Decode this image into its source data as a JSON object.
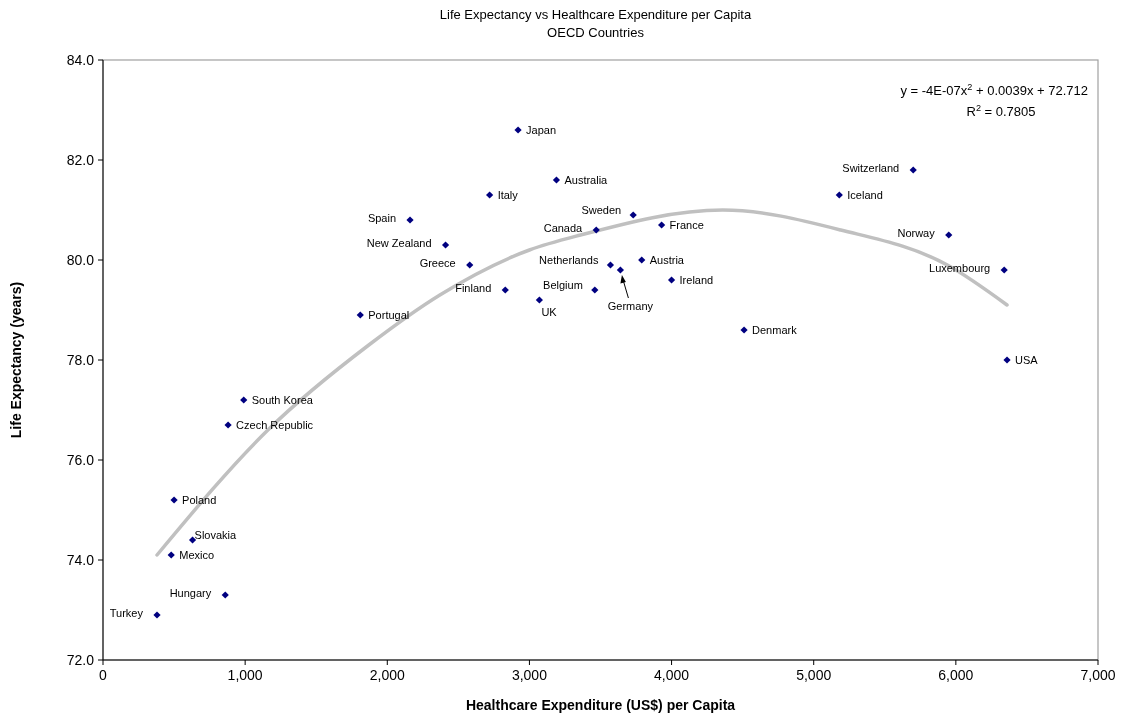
{
  "chart_data": {
    "type": "scatter",
    "title": "Life Expectancy vs Healthcare Expenditure per Capita",
    "subtitle": "OECD Countries",
    "xlabel": "Healthcare Expenditure (US$) per Capita",
    "ylabel": "Life Expectancy (years)",
    "xlim": [
      0,
      7000
    ],
    "xticks": [
      0,
      {
        "value": 1000,
        "label": "1,000"
      },
      {
        "value": 2000,
        "label": "2,000"
      },
      {
        "value": 3000,
        "label": "3,000"
      },
      {
        "value": 4000,
        "label": "4,000"
      },
      {
        "value": 5000,
        "label": "5,000"
      },
      {
        "value": 6000,
        "label": "6,000"
      },
      {
        "value": 7000,
        "label": "7,000"
      }
    ],
    "ylim": [
      72,
      84
    ],
    "yticks": [
      {
        "value": 72,
        "label": "72.0"
      },
      {
        "value": 74,
        "label": "74.0"
      },
      {
        "value": 76,
        "label": "76.0"
      },
      {
        "value": 78,
        "label": "78.0"
      },
      {
        "value": 80,
        "label": "80.0"
      },
      {
        "value": 82,
        "label": "82.0"
      },
      {
        "value": 84,
        "label": "84.0"
      }
    ],
    "grid": false,
    "series": [
      {
        "marker": "diamond",
        "color": "#000080",
        "x": [
          2920,
          3190,
          2720,
          2160,
          2410,
          2580,
          2830,
          3070,
          1810,
          990,
          880,
          500,
          630,
          480,
          860,
          380,
          3730,
          3470,
          3570,
          3640,
          3460,
          3790,
          3930,
          4000,
          4510,
          5700,
          5180,
          5950,
          6340,
          6360
        ],
        "values": [
          82.6,
          81.6,
          81.3,
          80.8,
          80.3,
          79.9,
          79.4,
          79.2,
          78.9,
          77.2,
          76.7,
          75.2,
          74.4,
          74.1,
          73.3,
          72.9,
          80.9,
          80.6,
          79.9,
          79.8,
          79.4,
          80.0,
          80.7,
          79.6,
          78.6,
          81.8,
          81.3,
          80.5,
          79.8,
          78.0
        ]
      },
      {
        "type": "line",
        "color": "#c0c0c0",
        "x": [
          380,
          1160,
          1870,
          2370,
          3000,
          3360,
          4360,
          5190,
          5940,
          6360
        ],
        "values": [
          74.1,
          76.6,
          78.3,
          79.3,
          80.2,
          80.5,
          81.0,
          80.6,
          79.9,
          79.1
        ]
      }
    ],
    "annotations": [
      "y = -4E-07x$^{2}$ + 0.0039x + 72.712",
      "R$^{2}$ = 0.7805",
      {
        "text": "Japan",
        "x": 2920,
        "y": 82.6
      },
      {
        "text": "Australia",
        "x": 3190,
        "y": 81.6
      },
      {
        "text": "Italy",
        "x": 2720,
        "y": 81.3
      },
      {
        "text": "Spain",
        "x": 2160,
        "y": 80.8
      },
      {
        "text": "New Zealand",
        "x": 2410,
        "y": 80.3
      },
      {
        "text": "Greece",
        "x": 2580,
        "y": 79.9
      },
      {
        "text": "Finland",
        "x": 2830,
        "y": 79.4
      },
      {
        "text": "UK",
        "x": 3070,
        "y": 79.2
      },
      {
        "text": "Portugal",
        "x": 1810,
        "y": 78.9
      },
      {
        "text": "South Korea",
        "x": 990,
        "y": 77.2
      },
      {
        "text": "Czech Republic",
        "x": 880,
        "y": 76.7
      },
      {
        "text": "Poland",
        "x": 500,
        "y": 75.2
      },
      {
        "text": "Slovakia",
        "x": 630,
        "y": 74.4
      },
      {
        "text": "Mexico",
        "x": 480,
        "y": 74.1
      },
      {
        "text": "Hungary",
        "x": 860,
        "y": 73.3
      },
      {
        "text": "Turkey",
        "x": 380,
        "y": 72.9
      },
      {
        "text": "Sweden",
        "x": 3730,
        "y": 80.9
      },
      {
        "text": "Canada",
        "x": 3470,
        "y": 80.6
      },
      {
        "text": "Netherlands",
        "x": 3570,
        "y": 79.9
      },
      {
        "text": "Germany",
        "x": 3640,
        "y": 79.8
      },
      {
        "text": "Belgium",
        "x": 3460,
        "y": 79.4
      },
      {
        "text": "Austria",
        "x": 3790,
        "y": 80.0
      },
      {
        "text": "France",
        "x": 3930,
        "y": 80.7
      },
      {
        "text": "Ireland",
        "x": 4000,
        "y": 79.6
      },
      {
        "text": "Denmark",
        "x": 4510,
        "y": 78.6
      },
      {
        "text": "Switzerland",
        "x": 5700,
        "y": 81.8
      },
      {
        "text": "Iceland",
        "x": 5180,
        "y": 81.3
      },
      {
        "text": "Norway",
        "x": 5950,
        "y": 80.5
      },
      {
        "text": "Luxembourg",
        "x": 6340,
        "y": 79.8
      },
      {
        "text": "USA",
        "x": 6360,
        "y": 78.0
      }
    ]
  }
}
